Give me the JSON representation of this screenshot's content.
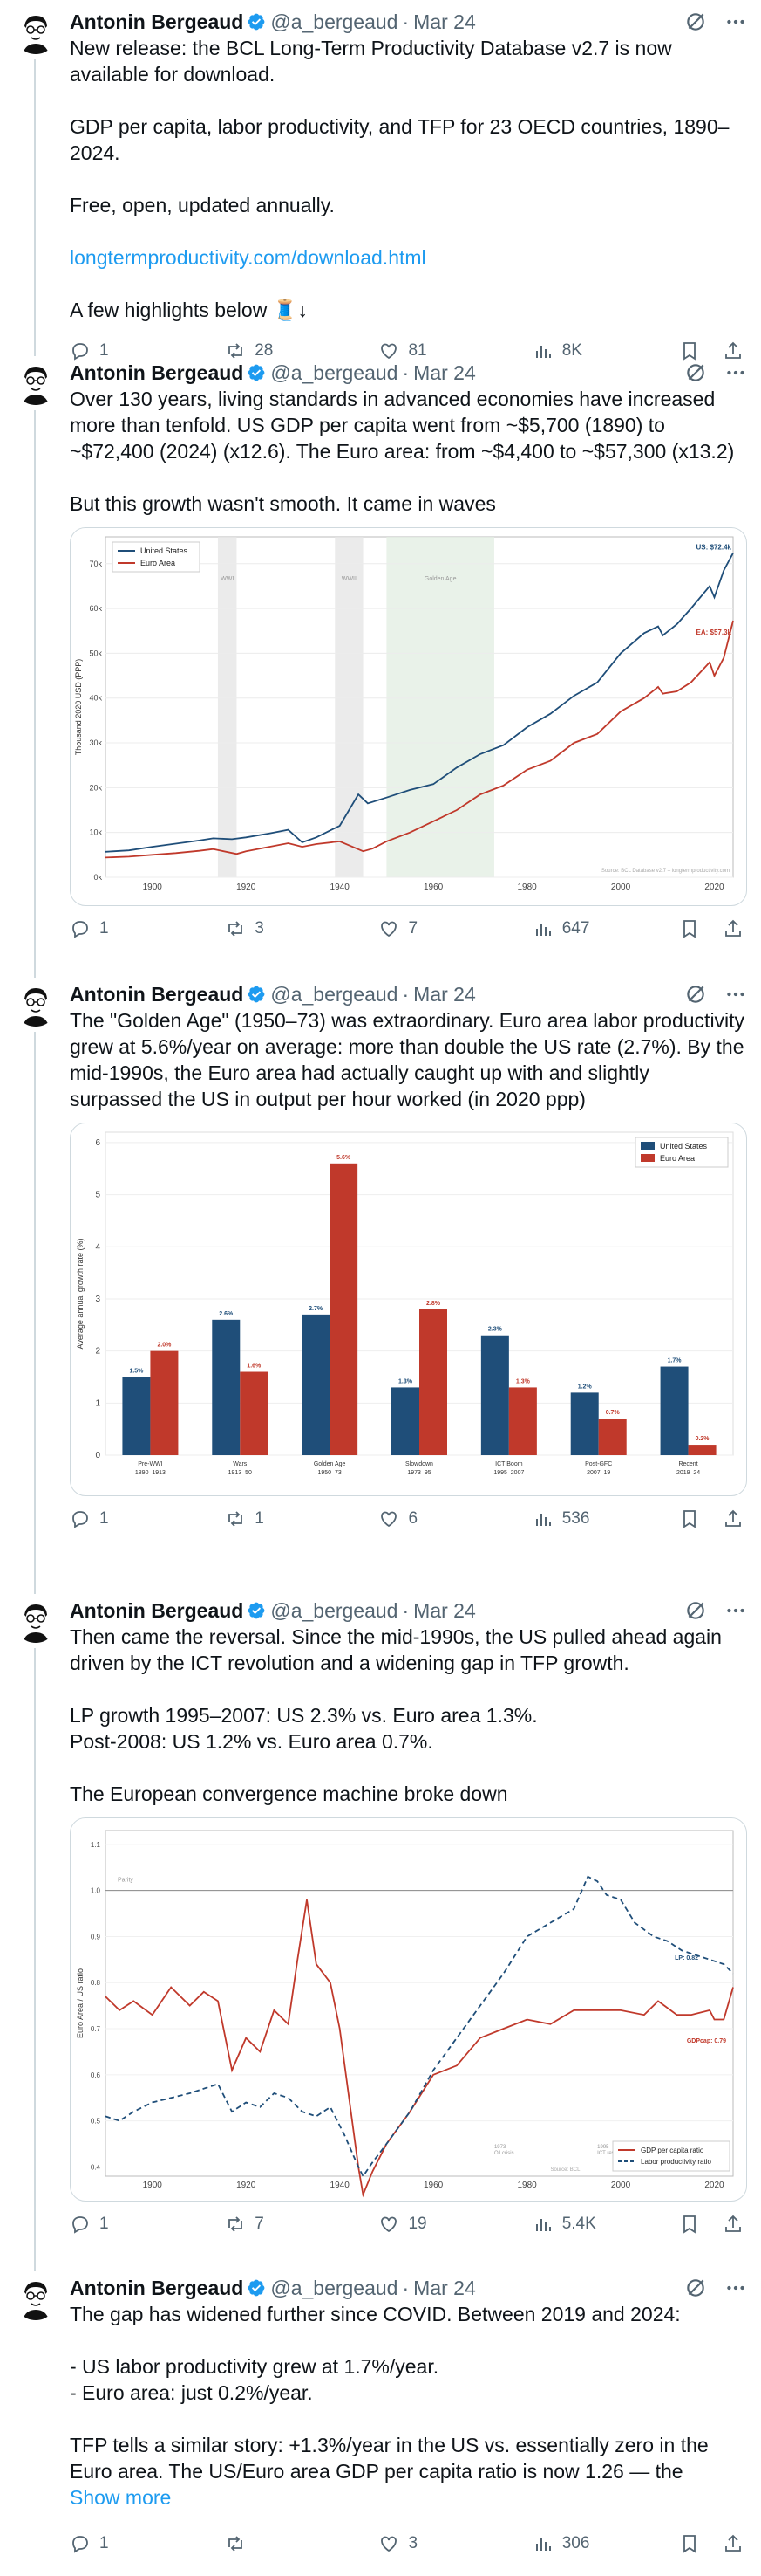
{
  "author": {
    "name": "Antonin Bergeaud",
    "handle": "@a_bergeaud",
    "sep": "·"
  },
  "tweets": [
    {
      "time": "Mar 24",
      "text_parts": [
        "New release: the BCL Long-Term Productivity Database v2.7 is now available for download.",
        "GDP per capita, labor productivity, and TFP for 23 OECD countries, 1890–2024.",
        "Free, open, updated annually."
      ],
      "link": "longtermproductivity.com/download.html",
      "tail": "A few highlights below 🧵↓",
      "replies": "1",
      "reposts": "28",
      "likes": "81",
      "views": "8K"
    },
    {
      "time": "Mar 24",
      "text": "Over 130 years, living standards in advanced economies have increased more than tenfold. US GDP per capita went from ~$5,700 (1890) to ~$72,400 (2024) (x12.6). The Euro area: from ~$4,400 to ~$57,300 (x13.2)\n\nBut this growth wasn't smooth. It came in waves",
      "replies": "1",
      "reposts": "3",
      "likes": "7",
      "views": "647"
    },
    {
      "time": "Mar 24",
      "text": "The \"Golden Age\" (1950–73) was extraordinary. Euro area labor productivity grew at 5.6%/year on average: more than double the US rate (2.7%). By the mid-1990s, the Euro area had actually caught up with and slightly surpassed the US in output per hour worked (in 2020 ppp)",
      "replies": "1",
      "reposts": "1",
      "likes": "6",
      "views": "536"
    },
    {
      "time": "Mar 24",
      "text": "Then came the reversal. Since the mid-1990s, the US pulled ahead again driven by the ICT revolution and a widening gap in TFP growth.\n\nLP growth 1995–2007: US 2.3% vs. Euro area 1.3%.\nPost-2008: US 1.2% vs. Euro area 0.7%.\n\nThe European convergence machine broke down",
      "replies": "1",
      "reposts": "7",
      "likes": "19",
      "views": "5.4K"
    },
    {
      "time": "Mar 24",
      "text": "The gap has widened further since COVID. Between 2019 and 2024:\n\n- US labor productivity grew at 1.7%/year.\n- Euro area: just 0.2%/year.\n\nTFP tells a similar story: +1.3%/year in the US vs. essentially zero in the Euro area. The US/Euro area GDP per capita ratio is now 1.26 — the",
      "show_more": "Show more",
      "replies": "1",
      "reposts": "",
      "likes": "3",
      "views": "306"
    }
  ],
  "icons": {
    "reply": "reply-icon",
    "repost": "repost-icon",
    "like": "heart-icon",
    "views": "views-icon",
    "bookmark": "bookmark-icon",
    "share": "share-icon",
    "grok": "grok-icon",
    "verified": "verified-badge-icon"
  },
  "colors": {
    "us": "#1f4e79",
    "euro": "#c0392b",
    "link": "#1d9bf0"
  },
  "chart_data": [
    {
      "type": "line",
      "ylabel": "Thousand 2020 USD (PPP)",
      "x_ticks": [
        "1900",
        "1920",
        "1940",
        "1960",
        "1980",
        "2000",
        "2020"
      ],
      "y_ticks": [
        "0k",
        "10k",
        "20k",
        "30k",
        "40k",
        "50k",
        "60k",
        "70k"
      ],
      "xlim": [
        1890,
        2024
      ],
      "ylim": [
        0,
        76
      ],
      "series": [
        {
          "name": "United States",
          "x": [
            1890,
            1895,
            1900,
            1905,
            1910,
            1913,
            1917,
            1920,
            1925,
            1929,
            1932,
            1935,
            1940,
            1944,
            1946,
            1950,
            1955,
            1960,
            1965,
            1970,
            1975,
            1980,
            1985,
            1990,
            1995,
            2000,
            2005,
            2008,
            2009,
            2012,
            2015,
            2019,
            2020,
            2022,
            2024
          ],
          "y": [
            5.7,
            6.0,
            6.8,
            7.5,
            8.2,
            8.7,
            8.5,
            8.9,
            9.8,
            10.6,
            7.8,
            8.9,
            11.5,
            18.5,
            16.5,
            17.8,
            19.5,
            20.8,
            24.5,
            27.5,
            29.5,
            33.5,
            36.5,
            40.5,
            43.5,
            50.0,
            54.5,
            56.0,
            54.0,
            56.5,
            60.0,
            65.0,
            62.5,
            68.5,
            72.4
          ]
        },
        {
          "name": "Euro Area",
          "x": [
            1890,
            1895,
            1900,
            1905,
            1910,
            1913,
            1918,
            1920,
            1925,
            1929,
            1932,
            1935,
            1940,
            1945,
            1947,
            1950,
            1955,
            1960,
            1965,
            1970,
            1975,
            1980,
            1985,
            1990,
            1995,
            2000,
            2005,
            2008,
            2009,
            2012,
            2015,
            2019,
            2020,
            2022,
            2024
          ],
          "y": [
            4.4,
            4.6,
            5.0,
            5.4,
            5.9,
            6.3,
            5.2,
            5.8,
            6.8,
            7.6,
            6.8,
            7.4,
            8.0,
            5.8,
            6.4,
            8.0,
            10.0,
            12.5,
            15.0,
            18.5,
            20.5,
            24.0,
            26.0,
            30.0,
            32.0,
            37.0,
            40.0,
            42.5,
            41.0,
            41.5,
            43.5,
            48.0,
            45.0,
            49.0,
            57.3
          ]
        }
      ],
      "shaded": [
        {
          "from": 1914,
          "to": 1918,
          "label": "WWI"
        },
        {
          "from": 1939,
          "to": 1945,
          "label": "WWII"
        },
        {
          "from": 1950,
          "to": 1973,
          "label": "Golden Age"
        }
      ],
      "end_labels": [
        "US: $72.4k",
        "EA: $57.3k"
      ],
      "source": "Source: BCL Database v2.7 – longtermproductivity.com",
      "legend": "top-left"
    },
    {
      "type": "bar",
      "ylabel": "Average annual growth rate (%)",
      "categories": [
        "Pre-WWI\n1890–1913",
        "Wars\n1913–50",
        "Golden Age\n1950–73",
        "Slowdown\n1973–95",
        "ICT Boom\n1995–2007",
        "Post-GFC\n2007–19",
        "Recent\n2019–24"
      ],
      "series": [
        {
          "name": "United States",
          "values": [
            1.5,
            2.6,
            2.7,
            1.3,
            2.3,
            1.2,
            1.7
          ],
          "labels": [
            "1.5%",
            "2.6%",
            "2.7%",
            "1.3%",
            "2.3%",
            "1.2%",
            "1.7%"
          ]
        },
        {
          "name": "Euro Area",
          "values": [
            2.0,
            1.6,
            5.6,
            2.8,
            1.3,
            0.7,
            0.2
          ],
          "labels": [
            "2.0%",
            "1.6%",
            "5.6%",
            "2.8%",
            "1.3%",
            "0.7%",
            "0.2%"
          ]
        }
      ],
      "y_ticks": [
        "0",
        "1",
        "2",
        "3",
        "4",
        "5",
        "6"
      ],
      "ylim": [
        0,
        6.2
      ],
      "legend": "top-right"
    },
    {
      "type": "line",
      "ylabel": "Euro Area / US ratio",
      "x_ticks": [
        "1900",
        "1920",
        "1940",
        "1960",
        "1980",
        "2000",
        "2020"
      ],
      "y_ticks": [
        "0.4",
        "0.5",
        "0.6",
        "0.7",
        "0.8",
        "0.9",
        "1.0",
        "1.1"
      ],
      "xlim": [
        1890,
        2024
      ],
      "ylim": [
        0.38,
        1.13
      ],
      "parity": {
        "y": 1.0,
        "label": "Parity"
      },
      "series": [
        {
          "name": "GDP per capita ratio",
          "style": "solid",
          "x": [
            1890,
            1893,
            1896,
            1900,
            1904,
            1908,
            1911,
            1914,
            1917,
            1920,
            1923,
            1926,
            1929,
            1931,
            1933,
            1935,
            1938,
            1940,
            1944,
            1945,
            1947,
            1950,
            1955,
            1960,
            1965,
            1970,
            1975,
            1980,
            1985,
            1990,
            1995,
            2000,
            2005,
            2008,
            2012,
            2015,
            2019,
            2020,
            2022,
            2024
          ],
          "y": [
            0.77,
            0.74,
            0.76,
            0.73,
            0.79,
            0.75,
            0.78,
            0.76,
            0.61,
            0.68,
            0.65,
            0.74,
            0.71,
            0.85,
            0.98,
            0.84,
            0.8,
            0.7,
            0.4,
            0.34,
            0.39,
            0.45,
            0.52,
            0.6,
            0.62,
            0.68,
            0.7,
            0.72,
            0.71,
            0.74,
            0.74,
            0.74,
            0.73,
            0.76,
            0.73,
            0.73,
            0.74,
            0.72,
            0.72,
            0.79
          ]
        },
        {
          "name": "Labor productivity ratio",
          "style": "dashed",
          "x": [
            1890,
            1893,
            1896,
            1900,
            1904,
            1908,
            1911,
            1914,
            1917,
            1920,
            1923,
            1926,
            1929,
            1932,
            1935,
            1938,
            1941,
            1944,
            1945,
            1947,
            1950,
            1955,
            1960,
            1965,
            1970,
            1975,
            1980,
            1985,
            1990,
            1993,
            1995,
            1997,
            2000,
            2003,
            2007,
            2010,
            2013,
            2016,
            2019,
            2022,
            2024
          ],
          "y": [
            0.51,
            0.5,
            0.52,
            0.54,
            0.55,
            0.56,
            0.57,
            0.58,
            0.52,
            0.54,
            0.53,
            0.56,
            0.55,
            0.52,
            0.51,
            0.53,
            0.47,
            0.4,
            0.38,
            0.41,
            0.45,
            0.52,
            0.61,
            0.68,
            0.75,
            0.82,
            0.9,
            0.93,
            0.96,
            1.03,
            1.02,
            0.99,
            0.98,
            0.93,
            0.9,
            0.89,
            0.87,
            0.86,
            0.85,
            0.84,
            0.82
          ]
        }
      ],
      "end_labels": [
        "LP: 0.82",
        "GDPcap: 0.79"
      ],
      "event_labels": [
        {
          "x": 1973,
          "label": "1973\nOil crisis"
        },
        {
          "x": 1995,
          "label": "1995\nICT revolution"
        }
      ],
      "source": "Source: BCL",
      "legend": "bottom-right"
    }
  ]
}
